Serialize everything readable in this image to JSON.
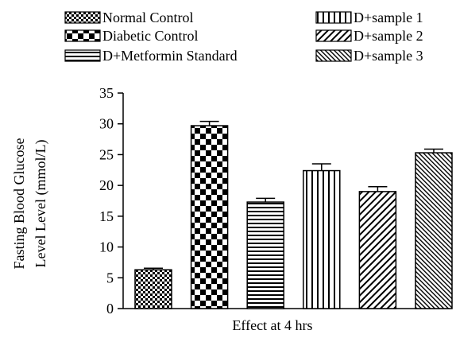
{
  "chart_data": {
    "type": "bar",
    "title": "",
    "xlabel": "Effect at 4 hrs",
    "ylabel_lines": [
      "Fasting Blood Glucose",
      "Level Level (mmol/L)"
    ],
    "ylim": [
      0,
      35
    ],
    "yticks": [
      0,
      5,
      10,
      15,
      20,
      25,
      30,
      35
    ],
    "grid": false,
    "legend_position": "top",
    "series": [
      {
        "name": "Normal Control",
        "value": 6.3,
        "error": 0.25,
        "pattern": "checker-fine"
      },
      {
        "name": "Diabetic Control",
        "value": 29.7,
        "error": 0.7,
        "pattern": "checker-coarse"
      },
      {
        "name": "D+Metformin Standard",
        "value": 17.3,
        "error": 0.6,
        "pattern": "horizontal-lines"
      },
      {
        "name": "D+sample 1",
        "value": 22.4,
        "error": 1.1,
        "pattern": "vertical-lines"
      },
      {
        "name": "D+sample 2",
        "value": 19.0,
        "error": 0.8,
        "pattern": "diagonal-lines"
      },
      {
        "name": "D+sample 3",
        "value": 25.3,
        "error": 0.6,
        "pattern": "diagonal-dense"
      }
    ]
  }
}
